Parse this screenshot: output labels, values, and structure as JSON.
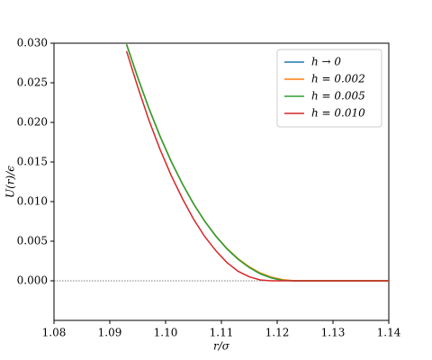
{
  "chart_data": {
    "type": "line",
    "xlabel": "r/σ",
    "ylabel": "U(r)/ϵ",
    "x": [
      1.093,
      1.095,
      1.097,
      1.099,
      1.101,
      1.103,
      1.105,
      1.107,
      1.109,
      1.111,
      1.113,
      1.115,
      1.117,
      1.119,
      1.121,
      1.123,
      1.125,
      1.13,
      1.14
    ],
    "series": [
      {
        "name": "h → 0",
        "color": "#1f77b4",
        "values": [
          0.02986,
          0.02568,
          0.02179,
          0.01826,
          0.01508,
          0.01225,
          0.00973,
          0.00753,
          0.00564,
          0.00403,
          0.00272,
          0.00167,
          0.00088,
          0.00035,
          6e-05,
          0,
          0,
          0,
          0
        ]
      },
      {
        "name": "h = 0.002",
        "color": "#ff7f0e",
        "values": [
          0.02986,
          0.02568,
          0.02179,
          0.01826,
          0.01508,
          0.01225,
          0.00973,
          0.00755,
          0.00567,
          0.00408,
          0.00279,
          0.00176,
          0.00098,
          0.00045,
          0.00014,
          2e-05,
          0,
          0,
          0
        ]
      },
      {
        "name": "h = 0.005",
        "color": "#2ca02c",
        "values": [
          0.02986,
          0.02568,
          0.02179,
          0.01826,
          0.01508,
          0.01225,
          0.00973,
          0.00753,
          0.00564,
          0.00403,
          0.00272,
          0.00167,
          0.00088,
          0.00035,
          6e-05,
          0,
          0,
          0,
          0
        ]
      },
      {
        "name": "h = 0.010",
        "color": "#d62728",
        "values": [
          0.029,
          0.0245,
          0.0203,
          0.0166,
          0.0133,
          0.0104,
          0.0078,
          0.0056,
          0.0038,
          0.0023,
          0.0012,
          0.0005,
          0.0001,
          0,
          0,
          0,
          0,
          0,
          0
        ]
      }
    ],
    "xlim": [
      1.08,
      1.14
    ],
    "ylim": [
      -0.005,
      0.03
    ],
    "xticks": [
      1.08,
      1.09,
      {
        "value": 1.1,
        "label": "1.10"
      },
      1.11,
      1.12,
      1.13,
      1.14
    ],
    "yticks": [
      {
        "value": 0,
        "label": "0.000"
      },
      {
        "value": 0.005,
        "label": "0.005"
      },
      {
        "value": 0.01,
        "label": "0.010"
      },
      {
        "value": 0.015,
        "label": "0.015"
      },
      {
        "value": 0.02,
        "label": "0.020"
      },
      {
        "value": 0.025,
        "label": "0.025"
      },
      {
        "value": 0.03,
        "label": "0.030"
      }
    ],
    "reference_line": {
      "y": 0,
      "style": "dotted"
    },
    "legend": "upper right"
  }
}
